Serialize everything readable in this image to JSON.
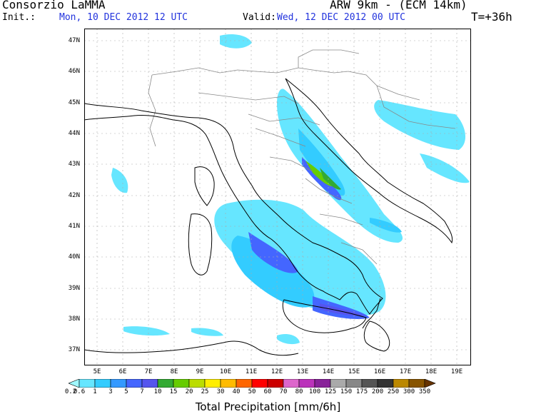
{
  "header": {
    "title": "Consorzio LaMMA",
    "model": "ARW 9km - (ECM 14km)",
    "init_label": "Init.:",
    "init_value": "Mon, 10 DEC 2012  12 UTC",
    "valid_label": "Valid:",
    "valid_value": "Wed, 12 DEC 2012  00 UTC",
    "forecast_step": "T=+36h"
  },
  "map": {
    "latitude_labels": [
      "47N",
      "46N",
      "45N",
      "44N",
      "43N",
      "42N",
      "41N",
      "40N",
      "39N",
      "38N",
      "37N"
    ],
    "longitude_labels": [
      "5E",
      "6E",
      "7E",
      "8E",
      "9E",
      "10E",
      "11E",
      "12E",
      "13E",
      "14E",
      "15E",
      "16E",
      "17E",
      "18E",
      "19E"
    ],
    "colors": {
      "border": "#000000",
      "coast": "#000000",
      "political": "#888888",
      "grid": "#aaaaaa"
    }
  },
  "legend": {
    "labels": [
      "0.2",
      "0.6",
      "1",
      "3",
      "5",
      "7",
      "10",
      "15",
      "20",
      "25",
      "30",
      "40",
      "50",
      "60",
      "70",
      "80",
      "100",
      "125",
      "150",
      "175",
      "200",
      "250",
      "300",
      "350"
    ],
    "colors": [
      "#9ff8ff",
      "#66e6ff",
      "#33ccff",
      "#3399ff",
      "#4466ff",
      "#5555ee",
      "#33aa33",
      "#66cc00",
      "#bbdd00",
      "#ffee00",
      "#ffbb00",
      "#ff6600",
      "#ff0000",
      "#cc0000",
      "#dd66cc",
      "#bb33bb",
      "#882299",
      "#aaaaaa",
      "#888888",
      "#555555",
      "#333333",
      "#bb8800",
      "#885500",
      "#663300"
    ],
    "title": "Total Precipitation [mm/6h]"
  }
}
